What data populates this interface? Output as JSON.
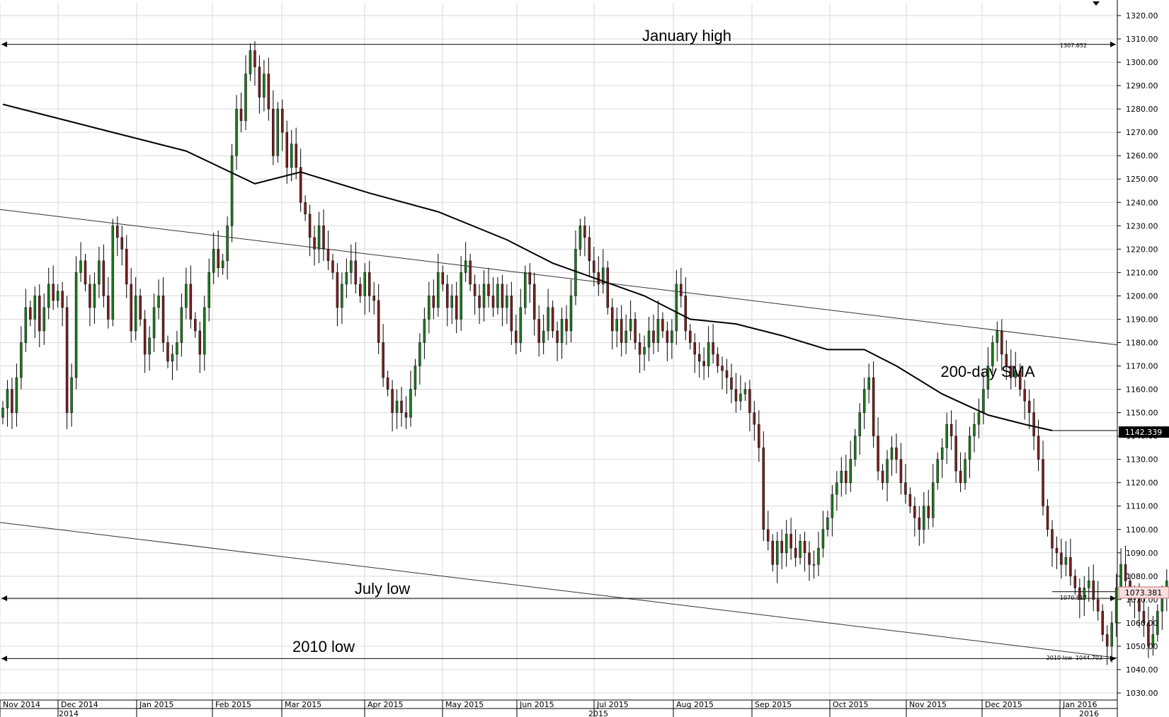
{
  "chart_data": {
    "type": "candlestick",
    "ylim": [
      1025,
      1325
    ],
    "y_ticks": [
      "1030.00",
      "1040.00",
      "1050.00",
      "1060.00",
      "1070.00",
      "1080.00",
      "1090.00",
      "1100.00",
      "1110.00",
      "1120.00",
      "1130.00",
      "1140.00",
      "1150.00",
      "1160.00",
      "1170.00",
      "1180.00",
      "1190.00",
      "1200.00",
      "1210.00",
      "1220.00",
      "1230.00",
      "1240.00",
      "1250.00",
      "1260.00",
      "1270.00",
      "1280.00",
      "1290.00",
      "1300.00",
      "1310.00",
      "1320.00"
    ],
    "x_months": [
      "Nov 2014",
      "Dec 2014",
      "Jan 2015",
      "Feb 2015",
      "Mar 2015",
      "Apr 2015",
      "May 2015",
      "Jun 2015",
      "Jul 2015",
      "Aug 2015",
      "Sep 2015",
      "Oct 2015",
      "Nov 2015",
      "Dec 2015",
      "Jan 2016"
    ],
    "x_years": [
      "2014",
      "2015",
      "2016"
    ],
    "annotations": {
      "january_high": {
        "label": "January high",
        "value": 1307.652,
        "value_text": "1307.652"
      },
      "july_low": {
        "label": "July low",
        "value": 1070.517,
        "value_text": "1070.517"
      },
      "low_2010": {
        "label": "2010 low",
        "value": 1044.703,
        "value_text": "1044.703",
        "small_label": "2010 low"
      },
      "sma": {
        "label": "200-day SMA",
        "value": 1142.339,
        "value_text": "1142.339"
      },
      "last_price": {
        "value": 1073.381,
        "value_text": "1073.381"
      }
    },
    "sma_200": [
      [
        0,
        1282
      ],
      [
        20,
        1272
      ],
      [
        40,
        1262
      ],
      [
        55,
        1248
      ],
      [
        65,
        1253
      ],
      [
        80,
        1244
      ],
      [
        95,
        1236
      ],
      [
        110,
        1224
      ],
      [
        120,
        1214
      ],
      [
        130,
        1207
      ],
      [
        140,
        1200
      ],
      [
        150,
        1190
      ],
      [
        160,
        1188
      ],
      [
        170,
        1183
      ],
      [
        180,
        1177
      ],
      [
        188,
        1177
      ],
      [
        195,
        1170
      ],
      [
        205,
        1158
      ],
      [
        215,
        1149
      ],
      [
        223,
        1145
      ],
      [
        229,
        1142.339
      ]
    ],
    "trendlines": [
      {
        "from": [
          0,
          1237
        ],
        "to": [
          229,
          1179
        ]
      },
      {
        "from": [
          0,
          1103
        ],
        "to": [
          229,
          1045
        ]
      }
    ],
    "candle_closes": [
      1152,
      1160,
      1150,
      1165,
      1180,
      1195,
      1190,
      1200,
      1185,
      1195,
      1205,
      1198,
      1202,
      1195,
      1150,
      1165,
      1210,
      1215,
      1205,
      1195,
      1205,
      1215,
      1200,
      1190,
      1230,
      1225,
      1220,
      1205,
      1185,
      1200,
      1190,
      1175,
      1182,
      1195,
      1200,
      1180,
      1172,
      1175,
      1180,
      1195,
      1205,
      1190,
      1185,
      1175,
      1195,
      1210,
      1220,
      1212,
      1215,
      1230,
      1260,
      1280,
      1275,
      1295,
      1305,
      1298,
      1285,
      1295,
      1280,
      1260,
      1280,
      1270,
      1255,
      1265,
      1255,
      1240,
      1235,
      1225,
      1220,
      1230,
      1220,
      1215,
      1210,
      1195,
      1205,
      1210,
      1215,
      1205,
      1200,
      1210,
      1200,
      1198,
      1180,
      1165,
      1160,
      1150,
      1155,
      1150,
      1148,
      1160,
      1170,
      1180,
      1190,
      1200,
      1195,
      1210,
      1205,
      1195,
      1200,
      1190,
      1210,
      1215,
      1205,
      1200,
      1195,
      1205,
      1200,
      1195,
      1205,
      1195,
      1200,
      1185,
      1180,
      1195,
      1210,
      1205,
      1190,
      1180,
      1185,
      1195,
      1185,
      1180,
      1190,
      1185,
      1200,
      1220,
      1230,
      1225,
      1215,
      1210,
      1205,
      1212,
      1195,
      1185,
      1190,
      1180,
      1185,
      1190,
      1180,
      1175,
      1178,
      1185,
      1180,
      1190,
      1185,
      1180,
      1185,
      1205,
      1200,
      1185,
      1180,
      1175,
      1172,
      1170,
      1180,
      1175,
      1170,
      1168,
      1165,
      1160,
      1155,
      1158,
      1160,
      1150,
      1145,
      1135,
      1100,
      1095,
      1085,
      1095,
      1090,
      1098,
      1092,
      1088,
      1095,
      1090,
      1085,
      1085,
      1092,
      1100,
      1105,
      1115,
      1120,
      1125,
      1120,
      1130,
      1140,
      1150,
      1160,
      1165,
      1140,
      1125,
      1120,
      1130,
      1135,
      1130,
      1120,
      1115,
      1110,
      1105,
      1100,
      1110,
      1105,
      1120,
      1130,
      1135,
      1145,
      1140,
      1125,
      1120,
      1130,
      1140,
      1145,
      1150,
      1160,
      1170,
      1180,
      1185,
      1175,
      1170,
      1165,
      1168,
      1160,
      1155,
      1150,
      1140,
      1130,
      1110,
      1100,
      1092,
      1090,
      1085,
      1088,
      1080,
      1075,
      1070,
      1075,
      1078,
      1070,
      1065,
      1055,
      1050,
      1060,
      1075,
      1085,
      1078,
      1070,
      1072,
      1065,
      1060,
      1050,
      1055,
      1065,
      1072,
      1078,
      1075,
      1072,
      1070,
      1073.381
    ]
  },
  "icons": {
    "top_marker": "chevron-down-icon"
  }
}
